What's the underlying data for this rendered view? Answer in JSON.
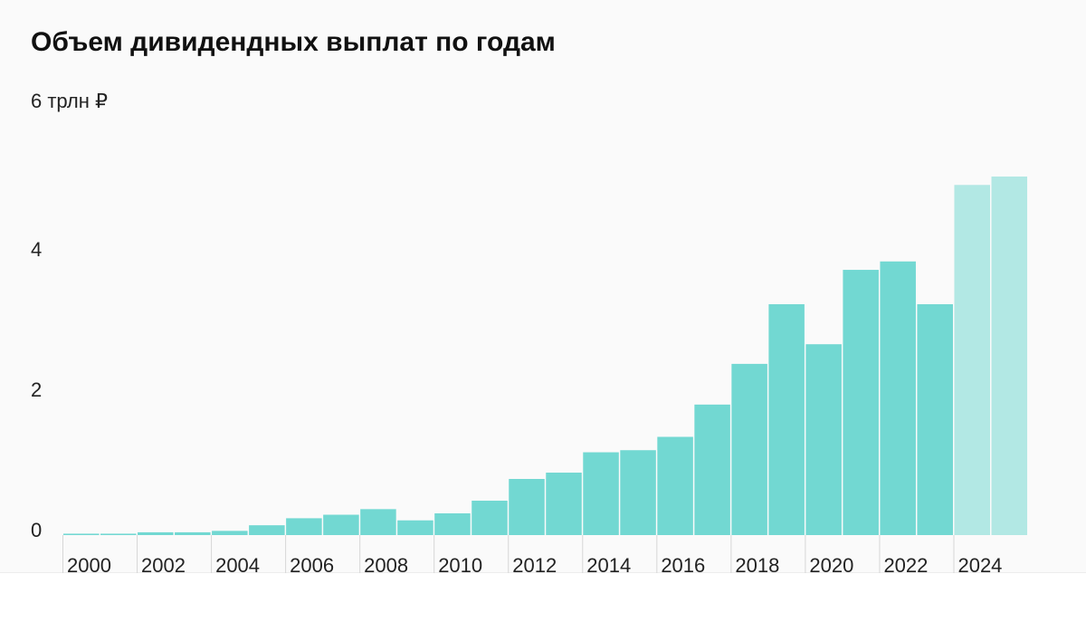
{
  "chart_data": {
    "type": "bar",
    "title": "Объем дивидендных выплат по годам",
    "y_unit_label": "6 трлн ₽",
    "ylim": [
      0,
      6
    ],
    "y_ticks": [
      "0",
      "2",
      "4"
    ],
    "x_ticks": [
      "2000",
      "2002",
      "2004",
      "2006",
      "2008",
      "2010",
      "2012",
      "2014",
      "2016",
      "2018",
      "2020",
      "2022",
      "2024"
    ],
    "grid": false,
    "categories": [
      2000,
      2001,
      2002,
      2003,
      2004,
      2005,
      2006,
      2007,
      2008,
      2009,
      2010,
      2011,
      2012,
      2013,
      2014,
      2015,
      2016,
      2017,
      2018,
      2019,
      2020,
      2021,
      2022,
      2023,
      2024,
      2025
    ],
    "series": [
      {
        "values": [
          0.02,
          0.02,
          0.04,
          0.04,
          0.06,
          0.14,
          0.24,
          0.29,
          0.37,
          0.21,
          0.31,
          0.49,
          0.8,
          0.89,
          1.18,
          1.21,
          1.4,
          1.86,
          2.44,
          3.29,
          2.72,
          3.78,
          3.9,
          3.29,
          4.99,
          5.11
        ],
        "color": "#72d8d2",
        "forecast_from_index": 24,
        "forecast_color": "#b2e8e4"
      }
    ]
  }
}
